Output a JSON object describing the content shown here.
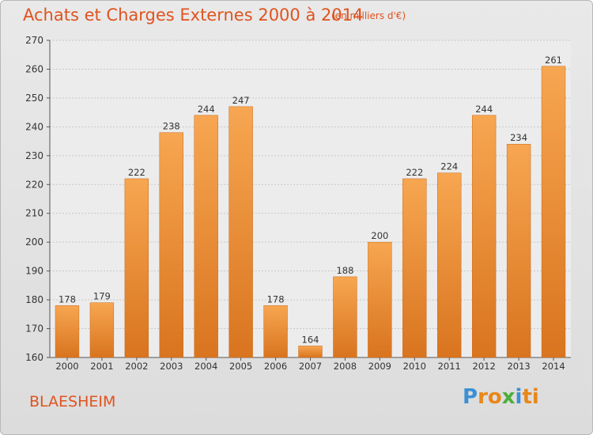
{
  "header": {
    "title": "Achats et Charges Externes 2000 à 2014",
    "subtitle": "(en milliers d'€)"
  },
  "footer": {
    "location": "BLAESHEIM",
    "logo_text": "Proxiti"
  },
  "colors": {
    "bar_light": "#f7a651",
    "bar_dark": "#d9741f",
    "title": "#e0531e"
  },
  "chart_data": {
    "type": "bar",
    "categories": [
      "2000",
      "2001",
      "2002",
      "2003",
      "2004",
      "2005",
      "2006",
      "2007",
      "2008",
      "2009",
      "2010",
      "2011",
      "2012",
      "2013",
      "2014"
    ],
    "values": [
      178,
      179,
      222,
      238,
      244,
      247,
      178,
      164,
      188,
      200,
      222,
      224,
      244,
      234,
      261
    ],
    "xlabel": "",
    "ylabel": "",
    "ylim": [
      160,
      270
    ],
    "yticks": [
      160,
      170,
      180,
      190,
      200,
      210,
      220,
      230,
      240,
      250,
      260,
      270
    ],
    "grid": true,
    "legend": "none"
  }
}
